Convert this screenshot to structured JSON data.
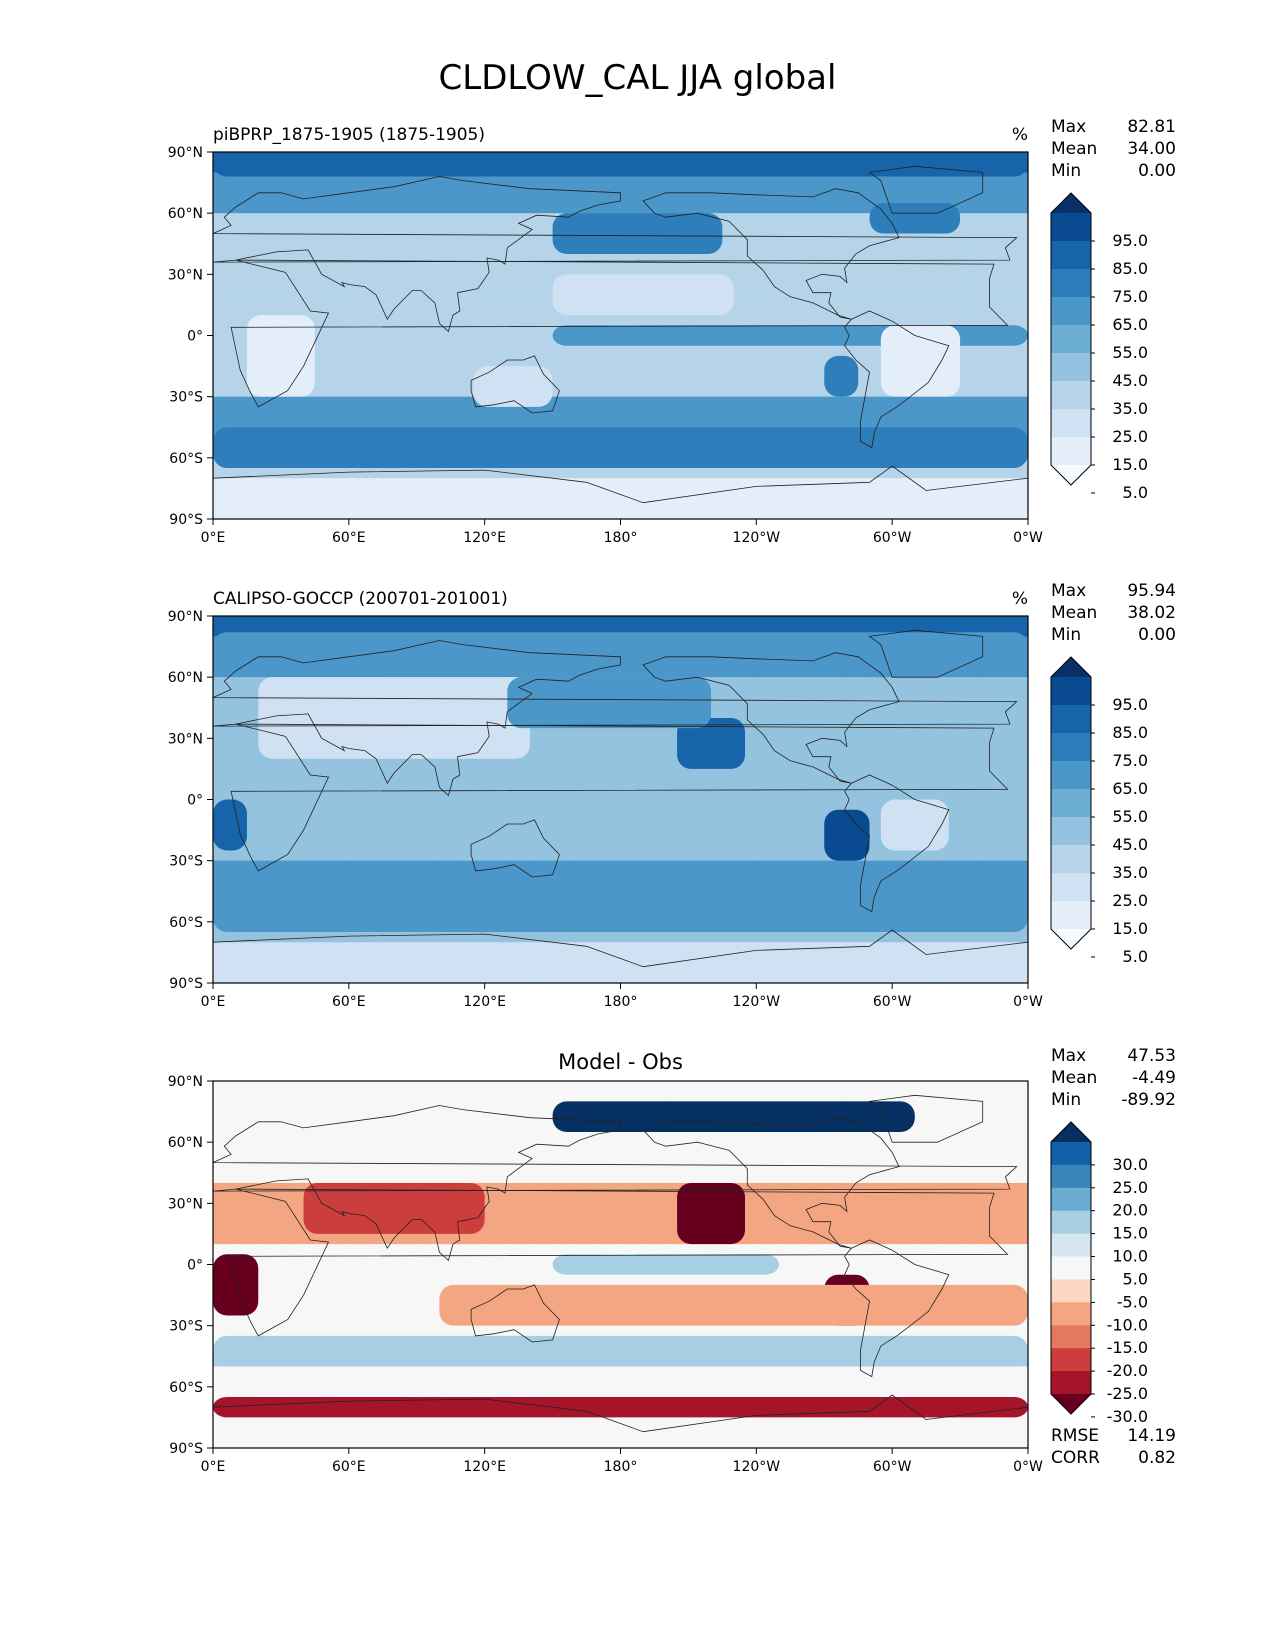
{
  "figure": {
    "title": "CLDLOW_CAL JJA global"
  },
  "colors": {
    "blues": [
      "#f7fbff",
      "#e3eef9",
      "#cfe1f2",
      "#b5d4e9",
      "#93c3df",
      "#6daed5",
      "#4b97c9",
      "#2f7ebc",
      "#1864aa",
      "#0a4a90",
      "#08306b"
    ],
    "diverging": [
      "#67001f",
      "#a51429",
      "#cc3d3d",
      "#e47960",
      "#f4a683",
      "#fbd7c4",
      "#f7f7f7",
      "#d5e6f1",
      "#a7cfe4",
      "#6aabd2",
      "#3885bc",
      "#1460a8",
      "#053061"
    ]
  },
  "axes": {
    "lon_ticks": [
      "0°E",
      "60°E",
      "120°E",
      "180°",
      "120°W",
      "60°W",
      "0°W"
    ],
    "lat_ticks": [
      "90°N",
      "60°N",
      "30°N",
      "0°",
      "30°S",
      "60°S",
      "90°S"
    ]
  },
  "panels": [
    {
      "left_title": "piBPRP_1875-1905 (1875-1905)",
      "center_title": "",
      "units": "%",
      "stats": [
        {
          "label": "Max",
          "value": "82.81"
        },
        {
          "label": "Mean",
          "value": "34.00"
        },
        {
          "label": "Min",
          "value": "0.00"
        }
      ],
      "colorbar": {
        "palette": "blues",
        "ticks": [
          "95.0",
          "85.0",
          "75.0",
          "65.0",
          "55.0",
          "45.0",
          "35.0",
          "25.0",
          "15.0",
          "5.0"
        ]
      },
      "extra_stats": []
    },
    {
      "left_title": "CALIPSO-GOCCP (200701-201001)",
      "center_title": "",
      "units": "%",
      "stats": [
        {
          "label": "Max",
          "value": "95.94"
        },
        {
          "label": "Mean",
          "value": "38.02"
        },
        {
          "label": "Min",
          "value": "0.00"
        }
      ],
      "colorbar": {
        "palette": "blues",
        "ticks": [
          "95.0",
          "85.0",
          "75.0",
          "65.0",
          "55.0",
          "45.0",
          "35.0",
          "25.0",
          "15.0",
          "5.0"
        ]
      },
      "extra_stats": []
    },
    {
      "left_title": "",
      "center_title": "Model - Obs",
      "units": "",
      "stats": [
        {
          "label": "Max",
          "value": "47.53"
        },
        {
          "label": "Mean",
          "value": "-4.49"
        },
        {
          "label": "Min",
          "value": "-89.92"
        }
      ],
      "colorbar": {
        "palette": "diverging",
        "ticks": [
          "30.0",
          "25.0",
          "20.0",
          "15.0",
          "10.0",
          "5.0",
          "-5.0",
          "-10.0",
          "-15.0",
          "-20.0",
          "-25.0",
          "-30.0"
        ]
      },
      "extra_stats": [
        {
          "label": "RMSE",
          "value": "14.19"
        },
        {
          "label": "CORR",
          "value": "0.82"
        }
      ]
    }
  ],
  "chart_data": [
    {
      "type": "heatmap",
      "title": "piBPRP_1875-1905 (1875-1905)",
      "units": "%",
      "x_range": [
        0,
        360
      ],
      "y_range": [
        -90,
        90
      ],
      "levels": [
        0,
        5,
        15,
        25,
        35,
        45,
        55,
        65,
        75,
        85,
        95,
        100
      ],
      "stats": {
        "max": 82.81,
        "mean": 34.0,
        "min": 0.0
      },
      "regions": [
        {
          "lon": [
            0,
            360
          ],
          "lat": [
            78,
            90
          ],
          "value": 80
        },
        {
          "lon": [
            0,
            360
          ],
          "lat": [
            -65,
            -45
          ],
          "value": 72
        },
        {
          "lon": [
            0,
            360
          ],
          "lat": [
            -90,
            -70
          ],
          "value": 5
        },
        {
          "lon": [
            150,
            225
          ],
          "lat": [
            40,
            60
          ],
          "value": 68
        },
        {
          "lon": [
            290,
            330
          ],
          "lat": [
            50,
            65
          ],
          "value": 72
        },
        {
          "lon": [
            150,
            360
          ],
          "lat": [
            -5,
            5
          ],
          "value": 55
        },
        {
          "lon": [
            270,
            285
          ],
          "lat": [
            -30,
            -10
          ],
          "value": 70
        },
        {
          "lon": [
            15,
            45
          ],
          "lat": [
            -30,
            10
          ],
          "value": 10
        },
        {
          "lon": [
            295,
            330
          ],
          "lat": [
            -30,
            5
          ],
          "value": 8
        },
        {
          "lon": [
            115,
            150
          ],
          "lat": [
            -35,
            -15
          ],
          "value": 20
        },
        {
          "lon": [
            150,
            230
          ],
          "lat": [
            10,
            30
          ],
          "value": 15
        }
      ]
    },
    {
      "type": "heatmap",
      "title": "CALIPSO-GOCCP (200701-201001)",
      "units": "%",
      "x_range": [
        0,
        360
      ],
      "y_range": [
        -90,
        90
      ],
      "levels": [
        0,
        5,
        15,
        25,
        35,
        45,
        55,
        65,
        75,
        85,
        95,
        100
      ],
      "stats": {
        "max": 95.94,
        "mean": 38.02,
        "min": 0.0
      },
      "regions": [
        {
          "lon": [
            0,
            360
          ],
          "lat": [
            70,
            82
          ],
          "value": 62
        },
        {
          "lon": [
            0,
            360
          ],
          "lat": [
            -65,
            -35
          ],
          "value": 62
        },
        {
          "lon": [
            205,
            235
          ],
          "lat": [
            15,
            40
          ],
          "value": 82
        },
        {
          "lon": [
            270,
            290
          ],
          "lat": [
            -30,
            -5
          ],
          "value": 85
        },
        {
          "lon": [
            0,
            15
          ],
          "lat": [
            -25,
            0
          ],
          "value": 80
        },
        {
          "lon": [
            20,
            140
          ],
          "lat": [
            20,
            60
          ],
          "value": 20
        },
        {
          "lon": [
            130,
            220
          ],
          "lat": [
            35,
            60
          ],
          "value": 60
        },
        {
          "lon": [
            295,
            325
          ],
          "lat": [
            -25,
            0
          ],
          "value": 20
        }
      ]
    },
    {
      "type": "heatmap",
      "title": "Model - Obs",
      "x_range": [
        0,
        360
      ],
      "y_range": [
        -90,
        90
      ],
      "levels": [
        -100,
        -30,
        -25,
        -20,
        -15,
        -10,
        -5,
        5,
        10,
        15,
        20,
        25,
        30,
        100
      ],
      "stats": {
        "max": 47.53,
        "mean": -4.49,
        "min": -89.92,
        "rmse": 14.19,
        "corr": 0.82
      },
      "regions": [
        {
          "lon": [
            205,
            235
          ],
          "lat": [
            10,
            40
          ],
          "value": -35
        },
        {
          "lon": [
            270,
            290
          ],
          "lat": [
            -30,
            -5
          ],
          "value": -35
        },
        {
          "lon": [
            0,
            20
          ],
          "lat": [
            -25,
            5
          ],
          "value": -32
        },
        {
          "lon": [
            0,
            360
          ],
          "lat": [
            -75,
            -65
          ],
          "value": -28
        },
        {
          "lon": [
            150,
            310
          ],
          "lat": [
            65,
            80
          ],
          "value": 30
        },
        {
          "lon": [
            0,
            360
          ],
          "lat": [
            -50,
            -35
          ],
          "value": 12
        },
        {
          "lon": [
            150,
            250
          ],
          "lat": [
            -5,
            5
          ],
          "value": 12
        },
        {
          "lon": [
            40,
            120
          ],
          "lat": [
            15,
            40
          ],
          "value": -22
        },
        {
          "lon": [
            100,
            360
          ],
          "lat": [
            -30,
            -10
          ],
          "value": -12
        }
      ]
    }
  ]
}
